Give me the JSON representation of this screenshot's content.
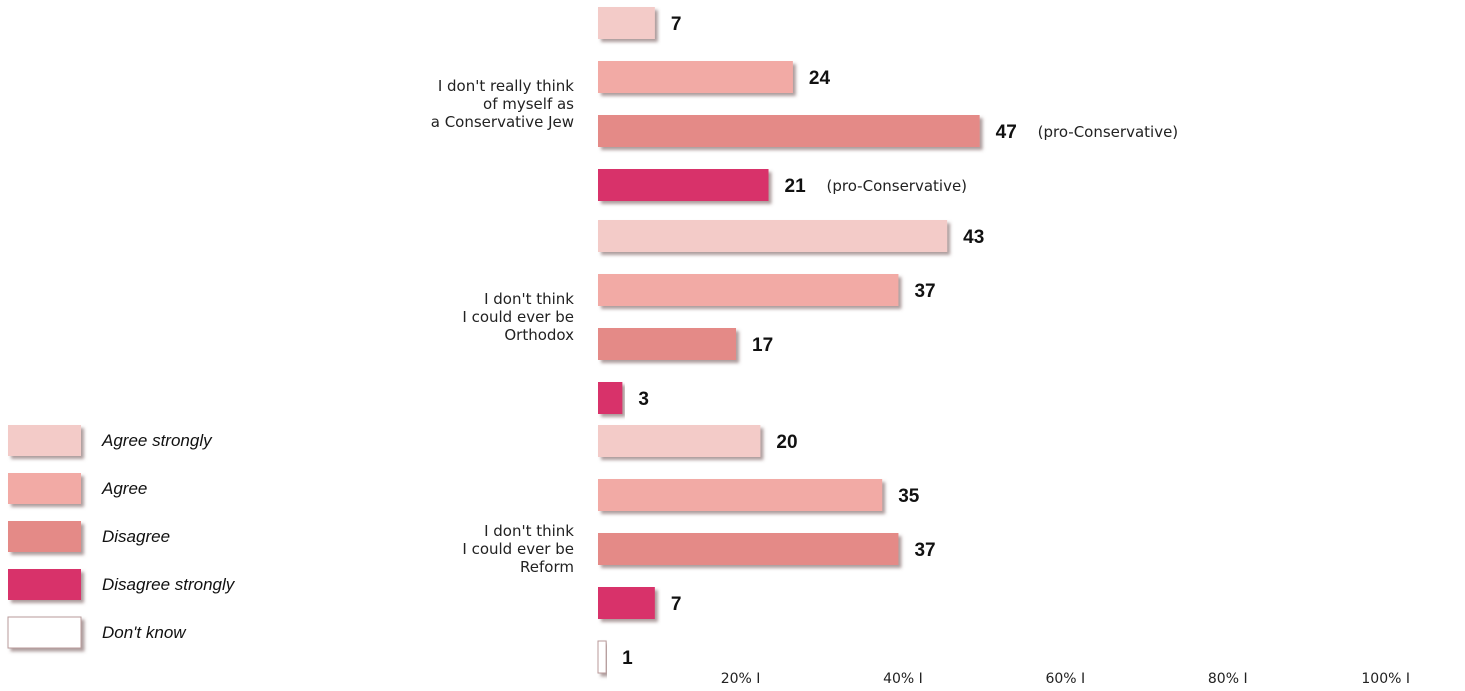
{
  "chart_data": {
    "type": "bar",
    "orientation": "horizontal",
    "legend_position": "bottom-left",
    "grid": false,
    "xlim": [
      0,
      100
    ],
    "series": [
      {
        "name": "Agree strongly",
        "color": "#f3cbc8"
      },
      {
        "name": "Agree",
        "color": "#f2aaa5"
      },
      {
        "name": "Disagree",
        "color": "#e48a87"
      },
      {
        "name": "Disagree strongly",
        "color": "#d8326a"
      },
      {
        "name": "Don't know",
        "color": "#ffffff"
      }
    ],
    "groups": [
      {
        "label_lines": [
          "I don't really think",
          "of myself as",
          "a Conservative Jew"
        ],
        "bars": [
          {
            "series": "Agree strongly",
            "value": 7,
            "label": "7",
            "note": ""
          },
          {
            "series": "Agree",
            "value": 24,
            "label": "24",
            "note": ""
          },
          {
            "series": "Disagree",
            "value": 47,
            "label": "47",
            "note": "(pro-Conservative)"
          },
          {
            "series": "Disagree strongly",
            "value": 21,
            "label": "21",
            "note": "(pro-Conservative)"
          }
        ]
      },
      {
        "label_lines": [
          "I don't think",
          "I could ever be",
          "Orthodox"
        ],
        "bars": [
          {
            "series": "Agree strongly",
            "value": 43,
            "label": "43",
            "note": ""
          },
          {
            "series": "Agree",
            "value": 37,
            "label": "37",
            "note": ""
          },
          {
            "series": "Disagree",
            "value": 17,
            "label": "17",
            "note": ""
          },
          {
            "series": "Disagree strongly",
            "value": 3,
            "label": "3",
            "note": ""
          }
        ]
      },
      {
        "label_lines": [
          "I don't think",
          "I could ever be",
          "Reform"
        ],
        "bars": [
          {
            "series": "Agree strongly",
            "value": 20,
            "label": "20",
            "note": ""
          },
          {
            "series": "Agree",
            "value": 35,
            "label": "35",
            "note": ""
          },
          {
            "series": "Disagree",
            "value": 37,
            "label": "37",
            "note": ""
          },
          {
            "series": "Disagree strongly",
            "value": 7,
            "label": "7",
            "note": ""
          },
          {
            "series": "Don't know",
            "value": 1,
            "label": "1",
            "note": ""
          }
        ]
      }
    ],
    "x_ticks": [
      {
        "value": 20,
        "label": "20% I"
      },
      {
        "value": 40,
        "label": "40% I"
      },
      {
        "value": 60,
        "label": "60% I"
      },
      {
        "value": 80,
        "label": "80% I"
      },
      {
        "value": 100,
        "label": "100% I"
      }
    ]
  }
}
